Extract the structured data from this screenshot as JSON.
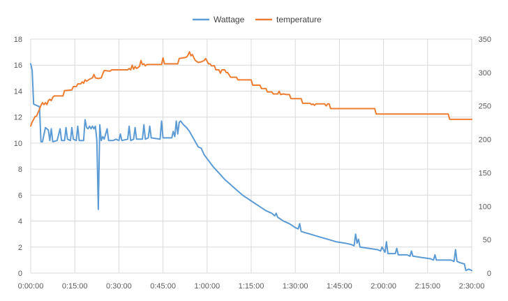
{
  "chart_data": {
    "type": "line",
    "legend": {
      "placement": "top-center",
      "entries": [
        "Wattage",
        "temperature"
      ]
    },
    "x_axis": {
      "unit": "h:mm:ss",
      "range": [
        "0:00:00",
        "2:30:00"
      ],
      "ticks": [
        "0:00:00",
        "0:15:00",
        "0:30:00",
        "0:45:00",
        "1:00:00",
        "1:15:00",
        "1:30:00",
        "1:45:00",
        "2:00:00",
        "2:15:00",
        "2:30:00"
      ]
    },
    "y_left": {
      "range": [
        0,
        18
      ],
      "ticks": [
        "0",
        "2",
        "4",
        "6",
        "8",
        "10",
        "12",
        "14",
        "16",
        "18"
      ]
    },
    "y_right": {
      "range": [
        0,
        350
      ],
      "ticks": [
        "0",
        "50",
        "100",
        "150",
        "200",
        "250",
        "300",
        "350"
      ]
    },
    "grid": true,
    "colors": {
      "Wattage": "#5b9bd5",
      "temperature": "#ed7d31",
      "grid": "#d9d9d9",
      "axis_text": "#595959"
    },
    "series": [
      {
        "name": "Wattage",
        "axis": "left",
        "points": [
          [
            "0:00:00",
            16.1
          ],
          [
            "0:00:30",
            15.6
          ],
          [
            "0:01:00",
            13.0
          ],
          [
            "0:02:00",
            12.9
          ],
          [
            "0:03:00",
            12.8
          ],
          [
            "0:03:30",
            10.1
          ],
          [
            "0:04:00",
            10.1
          ],
          [
            "0:05:00",
            11.2
          ],
          [
            "0:06:00",
            11.0
          ],
          [
            "0:06:30",
            10.2
          ],
          [
            "0:07:00",
            11.1
          ],
          [
            "0:07:30",
            10.1
          ],
          [
            "0:09:00",
            10.2
          ],
          [
            "0:10:00",
            11.1
          ],
          [
            "0:10:30",
            10.2
          ],
          [
            "0:11:30",
            10.2
          ],
          [
            "0:12:00",
            11.2
          ],
          [
            "0:12:30",
            10.3
          ],
          [
            "0:13:30",
            10.2
          ],
          [
            "0:14:00",
            11.2
          ],
          [
            "0:14:30",
            10.3
          ],
          [
            "0:15:30",
            10.2
          ],
          [
            "0:16:00",
            11.3
          ],
          [
            "0:16:30",
            10.2
          ],
          [
            "0:18:00",
            10.2
          ],
          [
            "0:18:30",
            11.8
          ],
          [
            "0:19:00",
            11.2
          ],
          [
            "0:19:30",
            11.1
          ],
          [
            "0:20:00",
            11.3
          ],
          [
            "0:20:30",
            11.1
          ],
          [
            "0:21:00",
            11.3
          ],
          [
            "0:21:30",
            11.1
          ],
          [
            "0:22:00",
            11.3
          ],
          [
            "0:22:30",
            10.2
          ],
          [
            "0:23:00",
            4.9
          ],
          [
            "0:23:30",
            11.4
          ],
          [
            "0:24:00",
            10.2
          ],
          [
            "0:24:30",
            10.5
          ],
          [
            "0:25:00",
            10.3
          ],
          [
            "0:26:00",
            11.1
          ],
          [
            "0:26:30",
            10.2
          ],
          [
            "0:28:00",
            10.2
          ],
          [
            "0:29:00",
            10.3
          ],
          [
            "0:30:00",
            10.2
          ],
          [
            "0:30:30",
            10.7
          ],
          [
            "0:31:00",
            10.2
          ],
          [
            "0:33:00",
            10.3
          ],
          [
            "0:33:30",
            11.3
          ],
          [
            "0:34:00",
            10.2
          ],
          [
            "0:35:00",
            10.3
          ],
          [
            "0:35:30",
            11.2
          ],
          [
            "0:36:00",
            10.3
          ],
          [
            "0:38:00",
            10.3
          ],
          [
            "0:38:30",
            11.4
          ],
          [
            "0:39:00",
            10.3
          ],
          [
            "0:40:00",
            10.4
          ],
          [
            "0:40:30",
            11.3
          ],
          [
            "0:41:00",
            10.4
          ],
          [
            "0:44:00",
            10.3
          ],
          [
            "0:44:30",
            11.7
          ],
          [
            "0:45:00",
            10.4
          ],
          [
            "0:48:00",
            10.4
          ],
          [
            "0:48:30",
            10.9
          ],
          [
            "0:49:00",
            10.5
          ],
          [
            "0:49:30",
            11.7
          ],
          [
            "0:50:00",
            10.7
          ],
          [
            "0:50:30",
            11.6
          ],
          [
            "0:51:00",
            11.7
          ],
          [
            "0:52:00",
            11.4
          ],
          [
            "0:53:00",
            11.2
          ],
          [
            "0:54:00",
            10.9
          ],
          [
            "0:55:00",
            10.5
          ],
          [
            "0:56:00",
            10.1
          ],
          [
            "0:57:00",
            9.7
          ],
          [
            "0:58:00",
            9.6
          ],
          [
            "0:59:00",
            9.1
          ],
          [
            "1:00:00",
            8.8
          ],
          [
            "1:02:00",
            8.2
          ],
          [
            "1:04:00",
            7.7
          ],
          [
            "1:06:00",
            7.2
          ],
          [
            "1:08:00",
            6.8
          ],
          [
            "1:10:00",
            6.4
          ],
          [
            "1:12:00",
            6.0
          ],
          [
            "1:14:00",
            5.7
          ],
          [
            "1:16:00",
            5.4
          ],
          [
            "1:18:00",
            5.1
          ],
          [
            "1:20:00",
            4.8
          ],
          [
            "1:22:00",
            4.6
          ],
          [
            "1:23:00",
            4.4
          ],
          [
            "1:23:30",
            4.6
          ],
          [
            "1:24:00",
            4.3
          ],
          [
            "1:26:00",
            4.0
          ],
          [
            "1:28:00",
            3.8
          ],
          [
            "1:30:00",
            3.5
          ],
          [
            "1:31:00",
            3.4
          ],
          [
            "1:31:30",
            3.8
          ],
          [
            "1:32:00",
            3.2
          ],
          [
            "1:35:00",
            3.0
          ],
          [
            "1:38:00",
            2.8
          ],
          [
            "1:41:00",
            2.6
          ],
          [
            "1:44:00",
            2.4
          ],
          [
            "1:47:00",
            2.3
          ],
          [
            "1:49:00",
            2.2
          ],
          [
            "1:50:00",
            2.1
          ],
          [
            "1:50:30",
            3.0
          ],
          [
            "1:51:00",
            2.3
          ],
          [
            "1:51:30",
            2.6
          ],
          [
            "1:52:00",
            2.0
          ],
          [
            "1:55:00",
            1.9
          ],
          [
            "1:58:00",
            1.8
          ],
          [
            "1:59:00",
            1.7
          ],
          [
            "1:59:30",
            2.0
          ],
          [
            "2:00:30",
            1.6
          ],
          [
            "2:01:00",
            2.4
          ],
          [
            "2:01:30",
            1.5
          ],
          [
            "2:04:00",
            1.5
          ],
          [
            "2:04:30",
            1.9
          ],
          [
            "2:05:00",
            1.4
          ],
          [
            "2:08:00",
            1.4
          ],
          [
            "2:09:00",
            1.3
          ],
          [
            "2:09:30",
            1.7
          ],
          [
            "2:10:00",
            1.3
          ],
          [
            "2:13:00",
            1.2
          ],
          [
            "2:16:00",
            1.1
          ],
          [
            "2:17:00",
            1.0
          ],
          [
            "2:17:30",
            1.4
          ],
          [
            "2:18:00",
            1.0
          ],
          [
            "2:21:00",
            1.0
          ],
          [
            "2:23:00",
            1.0
          ],
          [
            "2:24:00",
            0.9
          ],
          [
            "2:24:30",
            1.8
          ],
          [
            "2:25:00",
            0.9
          ],
          [
            "2:26:00",
            0.8
          ],
          [
            "2:27:30",
            0.7
          ],
          [
            "2:28:00",
            0.2
          ],
          [
            "2:29:00",
            0.3
          ],
          [
            "2:30:00",
            0.2
          ]
        ]
      },
      {
        "name": "temperature",
        "axis": "right",
        "points": [
          [
            "0:00:00",
            220
          ],
          [
            "0:00:30",
            226
          ],
          [
            "0:01:00",
            230
          ],
          [
            "0:01:30",
            234
          ],
          [
            "0:02:00",
            235
          ],
          [
            "0:02:30",
            240
          ],
          [
            "0:03:00",
            245
          ],
          [
            "0:03:30",
            251
          ],
          [
            "0:04:00",
            255
          ],
          [
            "0:04:30",
            252
          ],
          [
            "0:05:00",
            255
          ],
          [
            "0:05:30",
            252
          ],
          [
            "0:06:00",
            258
          ],
          [
            "0:06:30",
            260
          ],
          [
            "0:07:00",
            258
          ],
          [
            "0:07:30",
            263
          ],
          [
            "0:08:00",
            265
          ],
          [
            "0:09:00",
            265
          ],
          [
            "0:10:00",
            265
          ],
          [
            "0:11:00",
            265
          ],
          [
            "0:11:30",
            273
          ],
          [
            "0:14:00",
            274
          ],
          [
            "0:14:30",
            279
          ],
          [
            "0:15:30",
            279
          ],
          [
            "0:16:00",
            283
          ],
          [
            "0:17:00",
            283
          ],
          [
            "0:17:30",
            286
          ],
          [
            "0:18:00",
            284
          ],
          [
            "0:18:30",
            289
          ],
          [
            "0:19:00",
            287
          ],
          [
            "0:20:00",
            290
          ],
          [
            "0:21:00",
            292
          ],
          [
            "0:21:30",
            297
          ],
          [
            "0:22:00",
            292
          ],
          [
            "0:23:00",
            291
          ],
          [
            "0:24:00",
            292
          ],
          [
            "0:24:30",
            298
          ],
          [
            "0:25:00",
            303
          ],
          [
            "0:27:00",
            302
          ],
          [
            "0:27:30",
            304
          ],
          [
            "0:30:00",
            304
          ],
          [
            "0:33:00",
            304
          ],
          [
            "0:33:30",
            306
          ],
          [
            "0:34:00",
            304
          ],
          [
            "0:34:30",
            311
          ],
          [
            "0:35:00",
            305
          ],
          [
            "0:35:30",
            309
          ],
          [
            "0:36:00",
            306
          ],
          [
            "0:37:00",
            309
          ],
          [
            "0:37:30",
            318
          ],
          [
            "0:38:00",
            312
          ],
          [
            "0:38:30",
            313
          ],
          [
            "0:39:00",
            310
          ],
          [
            "0:39:30",
            312
          ],
          [
            "0:40:00",
            312
          ],
          [
            "0:44:30",
            312
          ],
          [
            "0:45:00",
            322
          ],
          [
            "0:45:30",
            313
          ],
          [
            "0:49:00",
            313
          ],
          [
            "0:50:00",
            313
          ],
          [
            "0:50:30",
            321
          ],
          [
            "0:52:00",
            322
          ],
          [
            "0:53:00",
            323
          ],
          [
            "0:53:30",
            326
          ],
          [
            "0:54:00",
            331
          ],
          [
            "0:54:30",
            325
          ],
          [
            "0:55:00",
            327
          ],
          [
            "0:55:30",
            322
          ],
          [
            "0:56:00",
            318
          ],
          [
            "0:57:00",
            315
          ],
          [
            "0:58:00",
            316
          ],
          [
            "0:59:00",
            318
          ],
          [
            "0:59:30",
            321
          ],
          [
            "1:00:00",
            317
          ],
          [
            "1:00:30",
            313
          ],
          [
            "1:01:00",
            313
          ],
          [
            "1:01:30",
            310
          ],
          [
            "1:02:30",
            310
          ],
          [
            "1:03:00",
            304
          ],
          [
            "1:04:00",
            304
          ],
          [
            "1:04:30",
            299
          ],
          [
            "1:05:00",
            304
          ],
          [
            "1:06:00",
            304
          ],
          [
            "1:06:30",
            300
          ],
          [
            "1:07:00",
            300
          ],
          [
            "1:08:00",
            293
          ],
          [
            "1:10:00",
            293
          ],
          [
            "1:10:30",
            289
          ],
          [
            "1:15:00",
            289
          ],
          [
            "1:15:30",
            281
          ],
          [
            "1:18:00",
            281
          ],
          [
            "1:18:30",
            276
          ],
          [
            "1:19:00",
            276
          ],
          [
            "1:20:00",
            276
          ],
          [
            "1:20:30",
            271
          ],
          [
            "1:22:00",
            271
          ],
          [
            "1:22:30",
            268
          ],
          [
            "1:23:00",
            268
          ],
          [
            "1:24:00",
            268
          ],
          [
            "1:24:30",
            272
          ],
          [
            "1:25:00",
            267
          ],
          [
            "1:26:00",
            268
          ],
          [
            "1:27:00",
            267
          ],
          [
            "1:28:00",
            267
          ],
          [
            "1:28:30",
            261
          ],
          [
            "1:32:00",
            261
          ],
          [
            "1:32:30",
            254
          ],
          [
            "1:35:00",
            254
          ],
          [
            "1:35:30",
            252
          ],
          [
            "1:36:00",
            253
          ],
          [
            "1:36:30",
            251
          ],
          [
            "1:37:00",
            253
          ],
          [
            "1:38:00",
            253
          ],
          [
            "1:39:00",
            253
          ],
          [
            "1:40:00",
            253
          ],
          [
            "1:40:30",
            250
          ],
          [
            "1:41:00",
            253
          ],
          [
            "1:41:30",
            253
          ],
          [
            "1:42:00",
            246
          ],
          [
            "1:57:00",
            246
          ],
          [
            "1:57:30",
            238
          ],
          [
            "2:22:00",
            238
          ],
          [
            "2:22:30",
            230
          ],
          [
            "2:30:00",
            230
          ]
        ]
      }
    ]
  }
}
